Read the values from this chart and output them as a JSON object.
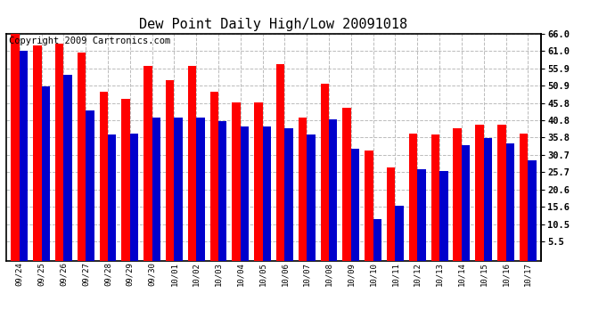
{
  "title": "Dew Point Daily High/Low 20091018",
  "copyright": "Copyright 2009 Cartronics.com",
  "categories": [
    "09/24",
    "09/25",
    "09/26",
    "09/27",
    "09/28",
    "09/29",
    "09/30",
    "10/01",
    "10/02",
    "10/03",
    "10/04",
    "10/05",
    "10/06",
    "10/07",
    "10/08",
    "10/09",
    "10/10",
    "10/11",
    "10/12",
    "10/13",
    "10/14",
    "10/15",
    "10/16",
    "10/17"
  ],
  "high_values": [
    66.0,
    62.5,
    63.0,
    60.5,
    49.0,
    47.0,
    56.5,
    52.5,
    56.5,
    49.0,
    46.0,
    46.0,
    57.0,
    41.5,
    51.5,
    44.5,
    32.0,
    27.0,
    37.0,
    36.5,
    38.5,
    39.5,
    39.5,
    37.0
  ],
  "low_values": [
    61.0,
    50.5,
    54.0,
    43.5,
    36.5,
    37.0,
    41.5,
    41.5,
    41.5,
    40.5,
    39.0,
    39.0,
    38.5,
    36.5,
    41.0,
    32.5,
    12.0,
    16.0,
    26.5,
    26.0,
    33.5,
    35.5,
    34.0,
    29.0
  ],
  "high_color": "#ff0000",
  "low_color": "#0000cc",
  "background_color": "#ffffff",
  "grid_color": "#bbbbbb",
  "y_ticks": [
    5.5,
    10.5,
    15.6,
    20.6,
    25.7,
    30.7,
    35.8,
    40.8,
    45.8,
    50.9,
    55.9,
    61.0,
    66.0
  ],
  "ylim": [
    0.0,
    66.0
  ],
  "title_fontsize": 11,
  "copyright_fontsize": 7.5,
  "bar_width": 0.38
}
